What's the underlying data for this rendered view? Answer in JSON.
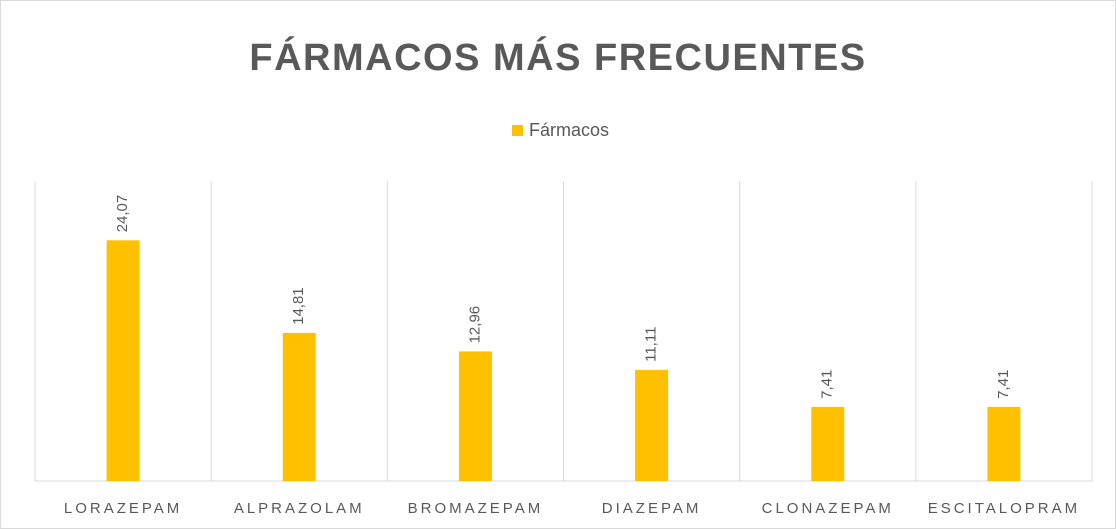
{
  "chart_data": {
    "type": "bar",
    "title": "FÁRMACOS MÁS FRECUENTES",
    "categories": [
      "LORAZEPAM",
      "ALPRAZOLAM",
      "BROMAZEPAM",
      "DIAZEPAM",
      "CLONAZEPAM",
      "ESCITALOPRAM"
    ],
    "series": [
      {
        "name": "Fármacos",
        "color": "#ffc000",
        "values": [
          24.07,
          14.81,
          12.96,
          11.11,
          7.41,
          7.41
        ],
        "value_labels": [
          "24,07",
          "14,81",
          "12,96",
          "11,11",
          "7,41",
          "7,41"
        ]
      }
    ],
    "ylim": [
      0,
      30
    ],
    "legend": "top"
  }
}
